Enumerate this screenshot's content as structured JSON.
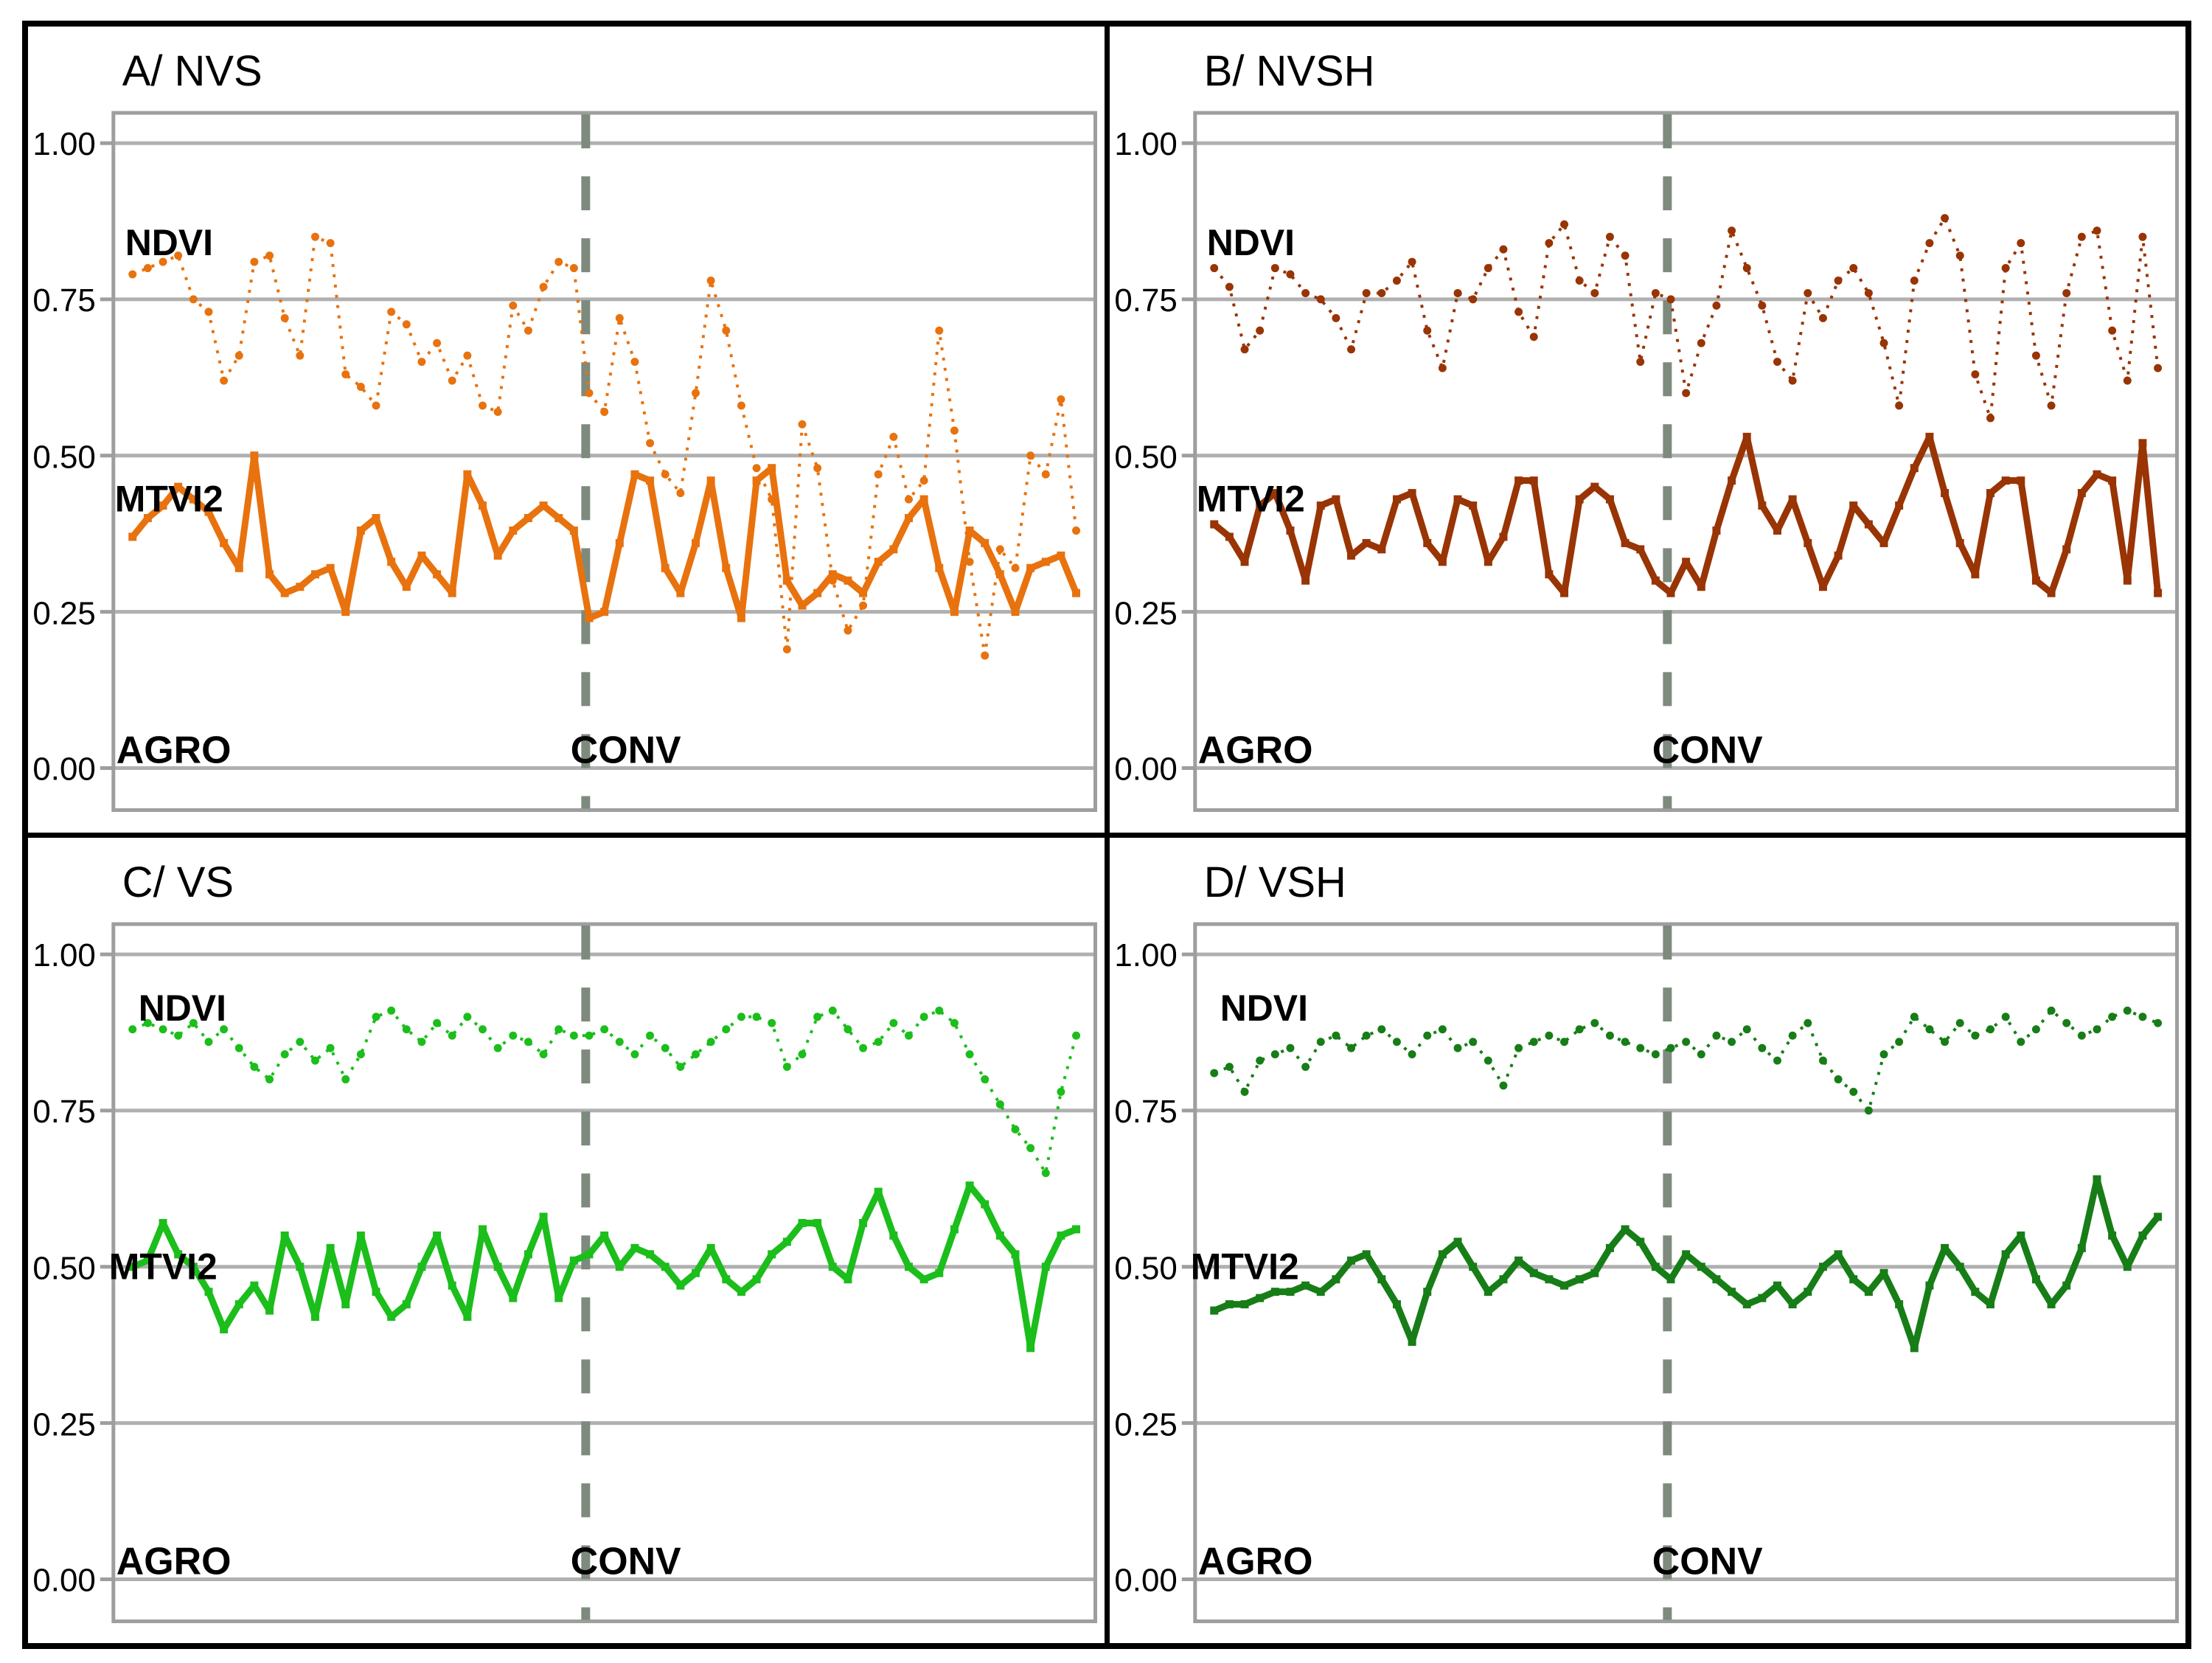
{
  "style": {
    "grid_color": "#b0b0b0",
    "axis_color": "#9e9e9e",
    "divider_color": "#7d8a7d",
    "text_color": "#000000",
    "background": "#ffffff"
  },
  "chart_data": [
    {
      "id": "A",
      "type": "line",
      "title": "A/ NVS",
      "color": "#E8720E",
      "ylim": [
        0,
        1
      ],
      "yticks": [
        "1.00",
        "0.75",
        "0.50",
        "0.25",
        "0.00"
      ],
      "grid": true,
      "sections": [
        "AGRO",
        "CONV"
      ],
      "divider_frac": 0.481,
      "series": [
        {
          "name": "NDVI",
          "style": "dotted",
          "values": [
            0.79,
            0.8,
            0.81,
            0.82,
            0.75,
            0.73,
            0.62,
            0.66,
            0.81,
            0.82,
            0.72,
            0.66,
            0.85,
            0.84,
            0.63,
            0.61,
            0.58,
            0.73,
            0.71,
            0.65,
            0.68,
            0.62,
            0.66,
            0.58,
            0.57,
            0.74,
            0.7,
            0.77,
            0.81,
            0.8,
            0.6,
            0.57,
            0.72,
            0.65,
            0.52,
            0.47,
            0.44,
            0.6,
            0.78,
            0.7,
            0.58,
            0.48,
            0.43,
            0.19,
            0.55,
            0.48,
            0.3,
            0.22,
            0.26,
            0.47,
            0.53,
            0.43,
            0.46,
            0.7,
            0.54,
            0.33,
            0.18,
            0.35,
            0.32,
            0.5,
            0.47,
            0.59,
            0.38
          ]
        },
        {
          "name": "MTVI2",
          "style": "solid",
          "values": [
            0.37,
            0.4,
            0.42,
            0.45,
            0.43,
            0.41,
            0.36,
            0.32,
            0.5,
            0.31,
            0.28,
            0.29,
            0.31,
            0.32,
            0.25,
            0.38,
            0.4,
            0.33,
            0.29,
            0.34,
            0.31,
            0.28,
            0.47,
            0.42,
            0.34,
            0.38,
            0.4,
            0.42,
            0.4,
            0.38,
            0.24,
            0.25,
            0.36,
            0.47,
            0.46,
            0.32,
            0.28,
            0.36,
            0.46,
            0.32,
            0.24,
            0.46,
            0.48,
            0.3,
            0.26,
            0.28,
            0.31,
            0.3,
            0.28,
            0.33,
            0.35,
            0.4,
            0.43,
            0.32,
            0.25,
            0.38,
            0.36,
            0.31,
            0.25,
            0.32,
            0.33,
            0.34,
            0.28
          ]
        }
      ]
    },
    {
      "id": "B",
      "type": "line",
      "title": "B/ NVSH",
      "color": "#993404",
      "ylim": [
        0,
        1
      ],
      "yticks": [
        "1.00",
        "0.75",
        "0.50",
        "0.25",
        "0.00"
      ],
      "grid": true,
      "sections": [
        "AGRO",
        "CONV"
      ],
      "divider_frac": 0.481,
      "series": [
        {
          "name": "NDVI",
          "style": "dotted",
          "values": [
            0.8,
            0.77,
            0.67,
            0.7,
            0.8,
            0.79,
            0.76,
            0.75,
            0.72,
            0.67,
            0.76,
            0.76,
            0.78,
            0.81,
            0.7,
            0.64,
            0.76,
            0.75,
            0.8,
            0.83,
            0.73,
            0.69,
            0.84,
            0.87,
            0.78,
            0.76,
            0.85,
            0.82,
            0.65,
            0.76,
            0.75,
            0.6,
            0.68,
            0.74,
            0.86,
            0.8,
            0.74,
            0.65,
            0.62,
            0.76,
            0.72,
            0.78,
            0.8,
            0.76,
            0.68,
            0.58,
            0.78,
            0.84,
            0.88,
            0.82,
            0.63,
            0.56,
            0.8,
            0.84,
            0.66,
            0.58,
            0.76,
            0.85,
            0.86,
            0.7,
            0.62,
            0.85,
            0.64
          ]
        },
        {
          "name": "MTVI2",
          "style": "solid",
          "values": [
            0.39,
            0.37,
            0.33,
            0.42,
            0.44,
            0.38,
            0.3,
            0.42,
            0.43,
            0.34,
            0.36,
            0.35,
            0.43,
            0.44,
            0.36,
            0.33,
            0.43,
            0.42,
            0.33,
            0.37,
            0.46,
            0.46,
            0.31,
            0.28,
            0.43,
            0.45,
            0.43,
            0.36,
            0.35,
            0.3,
            0.28,
            0.33,
            0.29,
            0.38,
            0.46,
            0.53,
            0.42,
            0.38,
            0.43,
            0.36,
            0.29,
            0.34,
            0.42,
            0.39,
            0.36,
            0.42,
            0.48,
            0.53,
            0.44,
            0.36,
            0.31,
            0.44,
            0.46,
            0.46,
            0.3,
            0.28,
            0.35,
            0.44,
            0.47,
            0.46,
            0.3,
            0.52,
            0.28
          ]
        }
      ]
    },
    {
      "id": "C",
      "type": "line",
      "title": "C/ VS",
      "color": "#1BBE1B",
      "ylim": [
        0,
        1
      ],
      "yticks": [
        "1.00",
        "0.75",
        "0.50",
        "0.25",
        "0.00"
      ],
      "grid": true,
      "sections": [
        "AGRO",
        "CONV"
      ],
      "divider_frac": 0.481,
      "series": [
        {
          "name": "NDVI",
          "style": "dotted",
          "values": [
            0.88,
            0.89,
            0.88,
            0.87,
            0.89,
            0.86,
            0.88,
            0.85,
            0.82,
            0.8,
            0.84,
            0.86,
            0.83,
            0.85,
            0.8,
            0.84,
            0.9,
            0.91,
            0.88,
            0.86,
            0.89,
            0.87,
            0.9,
            0.88,
            0.85,
            0.87,
            0.86,
            0.84,
            0.88,
            0.87,
            0.87,
            0.88,
            0.86,
            0.84,
            0.87,
            0.85,
            0.82,
            0.84,
            0.86,
            0.88,
            0.9,
            0.9,
            0.89,
            0.82,
            0.84,
            0.9,
            0.91,
            0.88,
            0.85,
            0.86,
            0.89,
            0.87,
            0.9,
            0.91,
            0.89,
            0.84,
            0.8,
            0.76,
            0.72,
            0.69,
            0.65,
            0.78,
            0.87
          ]
        },
        {
          "name": "MTVI2",
          "style": "solid",
          "values": [
            0.5,
            0.51,
            0.57,
            0.52,
            0.5,
            0.46,
            0.4,
            0.44,
            0.47,
            0.43,
            0.55,
            0.5,
            0.42,
            0.53,
            0.44,
            0.55,
            0.46,
            0.42,
            0.44,
            0.5,
            0.55,
            0.47,
            0.42,
            0.56,
            0.5,
            0.45,
            0.52,
            0.58,
            0.45,
            0.51,
            0.52,
            0.55,
            0.5,
            0.53,
            0.52,
            0.5,
            0.47,
            0.49,
            0.53,
            0.48,
            0.46,
            0.48,
            0.52,
            0.54,
            0.57,
            0.57,
            0.5,
            0.48,
            0.57,
            0.62,
            0.55,
            0.5,
            0.48,
            0.49,
            0.56,
            0.63,
            0.6,
            0.55,
            0.52,
            0.37,
            0.5,
            0.55,
            0.56
          ]
        }
      ]
    },
    {
      "id": "D",
      "type": "line",
      "title": "D/ VSH",
      "color": "#177D17",
      "ylim": [
        0,
        1
      ],
      "yticks": [
        "1.00",
        "0.75",
        "0.50",
        "0.25",
        "0.00"
      ],
      "grid": true,
      "sections": [
        "AGRO",
        "CONV"
      ],
      "divider_frac": 0.481,
      "series": [
        {
          "name": "NDVI",
          "style": "dotted",
          "values": [
            0.81,
            0.82,
            0.78,
            0.83,
            0.84,
            0.85,
            0.82,
            0.86,
            0.87,
            0.85,
            0.87,
            0.88,
            0.86,
            0.84,
            0.87,
            0.88,
            0.85,
            0.86,
            0.83,
            0.79,
            0.85,
            0.86,
            0.87,
            0.86,
            0.88,
            0.89,
            0.87,
            0.86,
            0.85,
            0.84,
            0.85,
            0.86,
            0.84,
            0.87,
            0.86,
            0.88,
            0.85,
            0.83,
            0.87,
            0.89,
            0.83,
            0.8,
            0.78,
            0.75,
            0.84,
            0.86,
            0.9,
            0.88,
            0.86,
            0.89,
            0.87,
            0.88,
            0.9,
            0.86,
            0.88,
            0.91,
            0.89,
            0.87,
            0.88,
            0.9,
            0.91,
            0.9,
            0.89
          ]
        },
        {
          "name": "MTVI2",
          "style": "solid",
          "values": [
            0.43,
            0.44,
            0.44,
            0.45,
            0.46,
            0.46,
            0.47,
            0.46,
            0.48,
            0.51,
            0.52,
            0.48,
            0.44,
            0.38,
            0.46,
            0.52,
            0.54,
            0.5,
            0.46,
            0.48,
            0.51,
            0.49,
            0.48,
            0.47,
            0.48,
            0.49,
            0.53,
            0.56,
            0.54,
            0.5,
            0.48,
            0.52,
            0.5,
            0.48,
            0.46,
            0.44,
            0.45,
            0.47,
            0.44,
            0.46,
            0.5,
            0.52,
            0.48,
            0.46,
            0.49,
            0.44,
            0.37,
            0.47,
            0.53,
            0.5,
            0.46,
            0.44,
            0.52,
            0.55,
            0.48,
            0.44,
            0.47,
            0.53,
            0.64,
            0.55,
            0.5,
            0.55,
            0.58
          ]
        }
      ]
    }
  ]
}
